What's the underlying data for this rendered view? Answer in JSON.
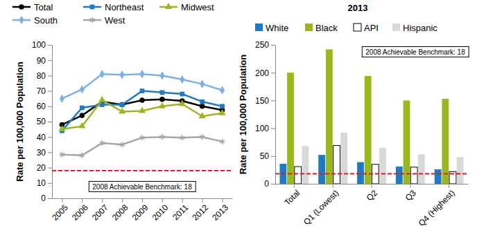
{
  "chart_data": [
    {
      "type": "line",
      "y_label": "Rate per 100,000 Population",
      "categories": [
        "2005",
        "2006",
        "2007",
        "2008",
        "2009",
        "2010",
        "2011",
        "2012",
        "2013"
      ],
      "series": [
        {
          "name": "Total",
          "color": "#000000",
          "marker": "circle",
          "values": [
            48,
            54,
            63,
            61,
            64,
            64.5,
            63.5,
            60,
            57.5
          ]
        },
        {
          "name": "Northeast",
          "color": "#1f7ac4",
          "marker": "square",
          "values": [
            44,
            59,
            61,
            61,
            70,
            69,
            68,
            63,
            60
          ]
        },
        {
          "name": "Midwest",
          "color": "#99b81e",
          "marker": "triangle",
          "values": [
            45,
            47,
            64,
            56.5,
            57,
            60,
            61.5,
            53.5,
            55.5
          ]
        },
        {
          "name": "South",
          "color": "#7fb0e3",
          "marker": "diamond",
          "values": [
            65,
            71,
            81,
            80.5,
            81,
            80,
            77.5,
            74.5,
            70.5
          ]
        },
        {
          "name": "West",
          "color": "#a6a6a6",
          "marker": "asterisk",
          "values": [
            28.5,
            28,
            36,
            35,
            39.5,
            40,
            39.5,
            40,
            37
          ]
        }
      ],
      "benchmark": {
        "value": 18,
        "label": "2008 Achievable Benchmark: 18"
      },
      "ylim": [
        0,
        100
      ],
      "yticks": [
        0,
        10,
        20,
        30,
        40,
        50,
        60,
        70,
        80,
        90,
        100
      ],
      "grid": false,
      "legend": "top"
    },
    {
      "type": "bar",
      "title": "2013",
      "y_label": "Rate per 100,000 Population",
      "categories": [
        "Total",
        "Q1 (Lowest)",
        "Q2",
        "Q3",
        "Q4 (Highest)"
      ],
      "series": [
        {
          "name": "White",
          "color": "#1f7ac4",
          "values": [
            36,
            52,
            39,
            31,
            26
          ]
        },
        {
          "name": "Black",
          "color": "#99b81e",
          "values": [
            200,
            242,
            194,
            150,
            153
          ]
        },
        {
          "name": "API",
          "color": "#ffffff",
          "values": [
            31,
            69,
            35,
            30,
            22
          ]
        },
        {
          "name": "Hispanic",
          "color": "#d9d9d9",
          "values": [
            68,
            92,
            65,
            53,
            48
          ]
        }
      ],
      "benchmark": {
        "value": 18,
        "label": "2008 Achievable Benchmark: 18"
      },
      "ylim": [
        0,
        250
      ],
      "yticks": [
        0,
        50,
        100,
        150,
        200,
        250
      ],
      "grid": false,
      "legend": "top"
    }
  ]
}
